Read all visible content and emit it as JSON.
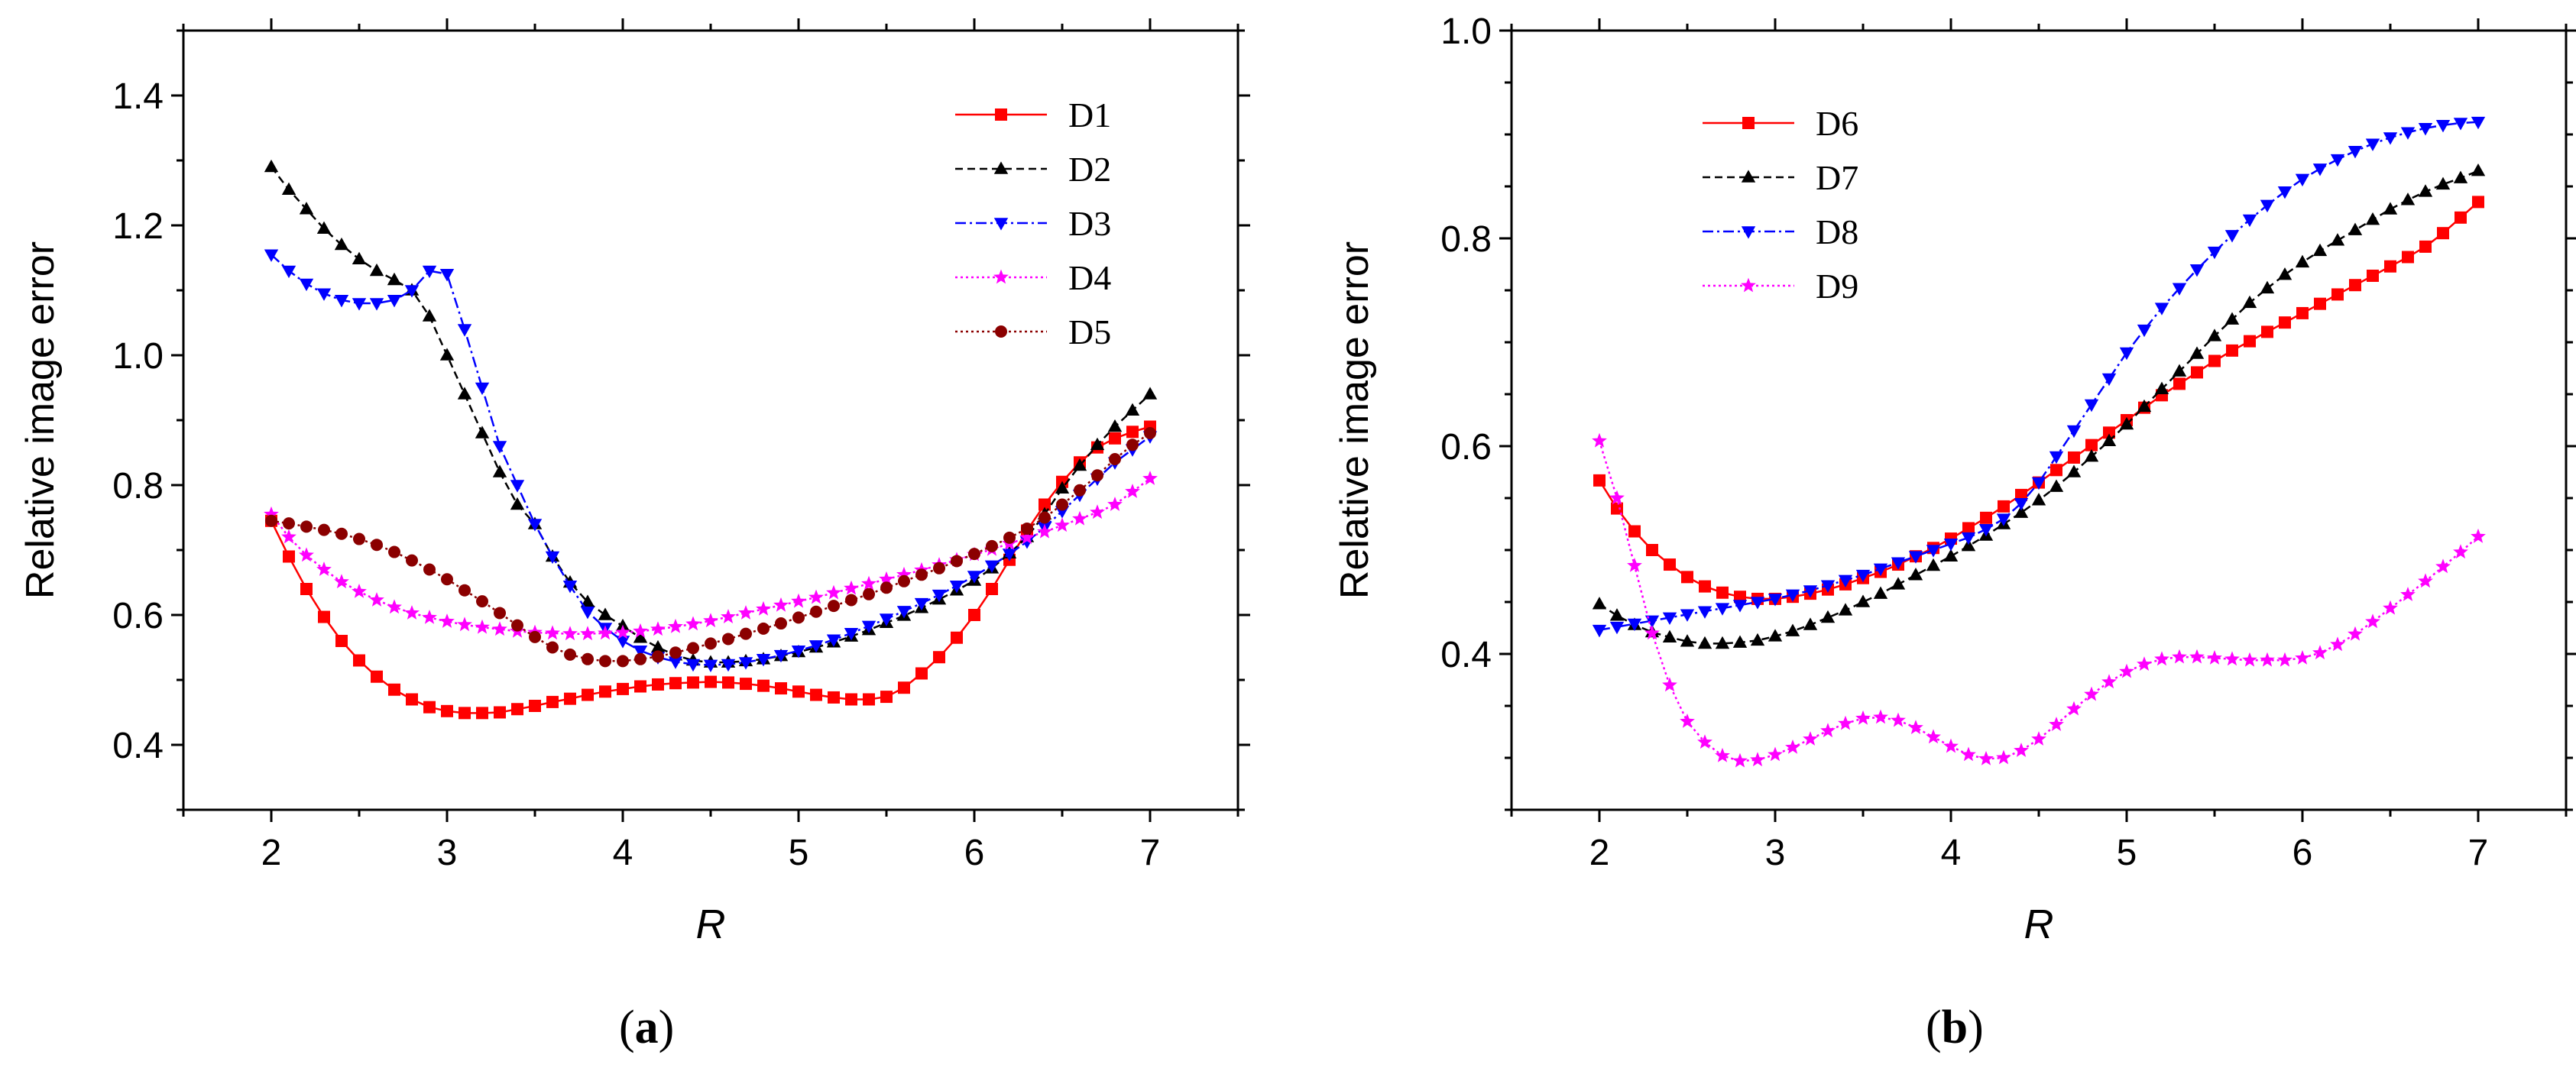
{
  "chart_data": [
    {
      "type": "line",
      "panel": "a",
      "panel_label": "a",
      "xlabel": "R",
      "ylabel": "Relative image error",
      "xlim": [
        1.5,
        7.5
      ],
      "ylim": [
        0.3,
        1.5
      ],
      "xticks": [
        2,
        3,
        4,
        5,
        6,
        7
      ],
      "yticks": [
        0.4,
        0.6,
        0.8,
        1.0,
        1.2,
        1.4
      ],
      "ytick_labels": [
        "0.4",
        "0.6",
        "0.8",
        "1.0",
        "1.2",
        "1.4"
      ],
      "legend_position": "top-right",
      "series": [
        {
          "name": "D1",
          "color": "#ff0000",
          "marker": "square",
          "dash": "solid",
          "x": [
            2.0,
            2.1,
            2.2,
            2.3,
            2.4,
            2.5,
            2.6,
            2.7,
            2.8,
            2.9,
            3.0,
            3.1,
            3.2,
            3.3,
            3.4,
            3.5,
            3.6,
            3.7,
            3.8,
            3.9,
            4.0,
            4.1,
            4.2,
            4.3,
            4.4,
            4.5,
            4.6,
            4.7,
            4.8,
            4.9,
            5.0,
            5.1,
            5.2,
            5.3,
            5.4,
            5.5,
            5.6,
            5.7,
            5.8,
            5.9,
            6.0,
            6.1,
            6.2,
            6.3,
            6.4,
            6.5,
            6.6,
            6.7,
            6.8,
            6.9,
            7.0
          ],
          "y": [
            0.745,
            0.69,
            0.64,
            0.597,
            0.56,
            0.53,
            0.505,
            0.485,
            0.47,
            0.458,
            0.452,
            0.449,
            0.449,
            0.45,
            0.455,
            0.46,
            0.466,
            0.471,
            0.477,
            0.482,
            0.486,
            0.49,
            0.493,
            0.495,
            0.496,
            0.497,
            0.496,
            0.494,
            0.491,
            0.487,
            0.482,
            0.477,
            0.473,
            0.47,
            0.47,
            0.474,
            0.488,
            0.51,
            0.535,
            0.565,
            0.6,
            0.64,
            0.685,
            0.73,
            0.77,
            0.805,
            0.835,
            0.858,
            0.872,
            0.882,
            0.89
          ]
        },
        {
          "name": "D2",
          "color": "#000000",
          "marker": "triangle-up",
          "dash": "dashed",
          "x": [
            2.0,
            2.1,
            2.2,
            2.3,
            2.4,
            2.5,
            2.6,
            2.7,
            2.8,
            2.9,
            3.0,
            3.1,
            3.2,
            3.3,
            3.4,
            3.5,
            3.6,
            3.7,
            3.8,
            3.9,
            4.0,
            4.1,
            4.2,
            4.3,
            4.4,
            4.5,
            4.6,
            4.7,
            4.8,
            4.9,
            5.0,
            5.1,
            5.2,
            5.3,
            5.4,
            5.5,
            5.6,
            5.7,
            5.8,
            5.9,
            6.0,
            6.1,
            6.2,
            6.3,
            6.4,
            6.5,
            6.6,
            6.7,
            6.8,
            6.9,
            7.0
          ],
          "y": [
            1.29,
            1.255,
            1.225,
            1.195,
            1.17,
            1.148,
            1.13,
            1.116,
            1.1,
            1.06,
            1.0,
            0.94,
            0.88,
            0.82,
            0.77,
            0.74,
            0.69,
            0.65,
            0.62,
            0.6,
            0.583,
            0.565,
            0.55,
            0.538,
            0.53,
            0.527,
            0.527,
            0.529,
            0.532,
            0.537,
            0.543,
            0.55,
            0.558,
            0.567,
            0.577,
            0.588,
            0.599,
            0.611,
            0.624,
            0.638,
            0.653,
            0.672,
            0.695,
            0.72,
            0.755,
            0.795,
            0.83,
            0.862,
            0.89,
            0.915,
            0.94
          ]
        },
        {
          "name": "D3",
          "color": "#0000ff",
          "marker": "triangle-down",
          "dash": "dashdot",
          "x": [
            2.0,
            2.1,
            2.2,
            2.3,
            2.4,
            2.5,
            2.6,
            2.7,
            2.8,
            2.9,
            3.0,
            3.1,
            3.2,
            3.3,
            3.4,
            3.5,
            3.6,
            3.7,
            3.8,
            3.9,
            4.0,
            4.1,
            4.2,
            4.3,
            4.4,
            4.5,
            4.6,
            4.7,
            4.8,
            4.9,
            5.0,
            5.1,
            5.2,
            5.3,
            5.4,
            5.5,
            5.6,
            5.7,
            5.8,
            5.9,
            6.0,
            6.1,
            6.2,
            6.3,
            6.4,
            6.5,
            6.6,
            6.7,
            6.8,
            6.9,
            7.0
          ],
          "y": [
            1.155,
            1.13,
            1.11,
            1.095,
            1.085,
            1.08,
            1.08,
            1.085,
            1.1,
            1.13,
            1.125,
            1.04,
            0.95,
            0.86,
            0.8,
            0.74,
            0.69,
            0.645,
            0.605,
            0.58,
            0.56,
            0.545,
            0.535,
            0.528,
            0.524,
            0.523,
            0.524,
            0.527,
            0.532,
            0.538,
            0.545,
            0.553,
            0.562,
            0.572,
            0.583,
            0.594,
            0.606,
            0.618,
            0.631,
            0.645,
            0.66,
            0.676,
            0.694,
            0.713,
            0.735,
            0.76,
            0.785,
            0.81,
            0.835,
            0.855,
            0.875
          ]
        },
        {
          "name": "D4",
          "color": "#ff00ff",
          "marker": "star",
          "dash": "dotted",
          "x": [
            2.0,
            2.1,
            2.2,
            2.3,
            2.4,
            2.5,
            2.6,
            2.7,
            2.8,
            2.9,
            3.0,
            3.1,
            3.2,
            3.3,
            3.4,
            3.5,
            3.6,
            3.7,
            3.8,
            3.9,
            4.0,
            4.1,
            4.2,
            4.3,
            4.4,
            4.5,
            4.6,
            4.7,
            4.8,
            4.9,
            5.0,
            5.1,
            5.2,
            5.3,
            5.4,
            5.5,
            5.6,
            5.7,
            5.8,
            5.9,
            6.0,
            6.1,
            6.2,
            6.3,
            6.4,
            6.5,
            6.6,
            6.7,
            6.8,
            6.9,
            7.0
          ],
          "y": [
            0.755,
            0.72,
            0.692,
            0.67,
            0.651,
            0.636,
            0.623,
            0.612,
            0.603,
            0.596,
            0.59,
            0.585,
            0.581,
            0.578,
            0.575,
            0.573,
            0.572,
            0.571,
            0.571,
            0.572,
            0.573,
            0.575,
            0.578,
            0.582,
            0.586,
            0.591,
            0.597,
            0.603,
            0.609,
            0.615,
            0.621,
            0.627,
            0.634,
            0.641,
            0.648,
            0.655,
            0.662,
            0.669,
            0.677,
            0.685,
            0.693,
            0.701,
            0.71,
            0.719,
            0.728,
            0.738,
            0.748,
            0.758,
            0.77,
            0.79,
            0.81
          ]
        },
        {
          "name": "D5",
          "color": "#8b0000",
          "marker": "circle",
          "dash": "dotted",
          "x": [
            2.0,
            2.1,
            2.2,
            2.3,
            2.4,
            2.5,
            2.6,
            2.7,
            2.8,
            2.9,
            3.0,
            3.1,
            3.2,
            3.3,
            3.4,
            3.5,
            3.6,
            3.7,
            3.8,
            3.9,
            4.0,
            4.1,
            4.2,
            4.3,
            4.4,
            4.5,
            4.6,
            4.7,
            4.8,
            4.9,
            5.0,
            5.1,
            5.2,
            5.3,
            5.4,
            5.5,
            5.6,
            5.7,
            5.8,
            5.9,
            6.0,
            6.1,
            6.2,
            6.3,
            6.4,
            6.5,
            6.6,
            6.7,
            6.8,
            6.9,
            7.0
          ],
          "y": [
            0.745,
            0.741,
            0.736,
            0.731,
            0.725,
            0.717,
            0.708,
            0.697,
            0.684,
            0.67,
            0.655,
            0.638,
            0.621,
            0.603,
            0.584,
            0.566,
            0.55,
            0.539,
            0.532,
            0.529,
            0.529,
            0.532,
            0.536,
            0.542,
            0.549,
            0.556,
            0.563,
            0.571,
            0.579,
            0.587,
            0.596,
            0.605,
            0.614,
            0.623,
            0.632,
            0.642,
            0.652,
            0.662,
            0.672,
            0.683,
            0.694,
            0.706,
            0.719,
            0.733,
            0.75,
            0.77,
            0.792,
            0.815,
            0.84,
            0.862,
            0.88
          ]
        }
      ]
    },
    {
      "type": "line",
      "panel": "b",
      "panel_label": "b",
      "xlabel": "R",
      "ylabel": "Relative image error",
      "xlim": [
        1.5,
        7.5
      ],
      "ylim": [
        0.25,
        1.0
      ],
      "xticks": [
        2,
        3,
        4,
        5,
        6,
        7
      ],
      "yticks": [
        0.4,
        0.6,
        0.8,
        1.0
      ],
      "ytick_labels": [
        "0.4",
        "0.6",
        "0.8",
        "1.0"
      ],
      "legend_position": "top-left",
      "series": [
        {
          "name": "D6",
          "color": "#ff0000",
          "marker": "square",
          "dash": "solid",
          "x": [
            2.0,
            2.1,
            2.2,
            2.3,
            2.4,
            2.5,
            2.6,
            2.7,
            2.8,
            2.9,
            3.0,
            3.1,
            3.2,
            3.3,
            3.4,
            3.5,
            3.6,
            3.7,
            3.8,
            3.9,
            4.0,
            4.1,
            4.2,
            4.3,
            4.4,
            4.5,
            4.6,
            4.7,
            4.8,
            4.9,
            5.0,
            5.1,
            5.2,
            5.3,
            5.4,
            5.5,
            5.6,
            5.7,
            5.8,
            5.9,
            6.0,
            6.1,
            6.2,
            6.3,
            6.4,
            6.5,
            6.6,
            6.7,
            6.8,
            6.9,
            7.0
          ],
          "y": [
            0.567,
            0.54,
            0.518,
            0.5,
            0.486,
            0.474,
            0.465,
            0.459,
            0.455,
            0.453,
            0.453,
            0.455,
            0.458,
            0.462,
            0.467,
            0.473,
            0.479,
            0.486,
            0.494,
            0.502,
            0.511,
            0.521,
            0.531,
            0.542,
            0.553,
            0.565,
            0.577,
            0.589,
            0.601,
            0.613,
            0.625,
            0.637,
            0.649,
            0.66,
            0.671,
            0.682,
            0.692,
            0.701,
            0.71,
            0.719,
            0.728,
            0.737,
            0.746,
            0.755,
            0.764,
            0.773,
            0.782,
            0.792,
            0.805,
            0.82,
            0.835
          ]
        },
        {
          "name": "D7",
          "color": "#000000",
          "marker": "triangle-up",
          "dash": "dashed",
          "x": [
            2.0,
            2.1,
            2.2,
            2.3,
            2.4,
            2.5,
            2.6,
            2.7,
            2.8,
            2.9,
            3.0,
            3.1,
            3.2,
            3.3,
            3.4,
            3.5,
            3.6,
            3.7,
            3.8,
            3.9,
            4.0,
            4.1,
            4.2,
            4.3,
            4.4,
            4.5,
            4.6,
            4.7,
            4.8,
            4.9,
            5.0,
            5.1,
            5.2,
            5.3,
            5.4,
            5.5,
            5.6,
            5.7,
            5.8,
            5.9,
            6.0,
            6.1,
            6.2,
            6.3,
            6.4,
            6.5,
            6.6,
            6.7,
            6.8,
            6.9,
            7.0
          ],
          "y": [
            0.448,
            0.437,
            0.428,
            0.421,
            0.416,
            0.412,
            0.41,
            0.41,
            0.411,
            0.413,
            0.417,
            0.422,
            0.428,
            0.435,
            0.442,
            0.45,
            0.458,
            0.467,
            0.476,
            0.485,
            0.494,
            0.504,
            0.514,
            0.525,
            0.536,
            0.548,
            0.561,
            0.575,
            0.59,
            0.605,
            0.621,
            0.638,
            0.655,
            0.672,
            0.689,
            0.706,
            0.722,
            0.738,
            0.752,
            0.765,
            0.777,
            0.788,
            0.798,
            0.808,
            0.818,
            0.828,
            0.837,
            0.845,
            0.852,
            0.858,
            0.865
          ]
        },
        {
          "name": "D8",
          "color": "#0000ff",
          "marker": "triangle-down",
          "dash": "dashdot",
          "x": [
            2.0,
            2.1,
            2.2,
            2.3,
            2.4,
            2.5,
            2.6,
            2.7,
            2.8,
            2.9,
            3.0,
            3.1,
            3.2,
            3.3,
            3.4,
            3.5,
            3.6,
            3.7,
            3.8,
            3.9,
            4.0,
            4.1,
            4.2,
            4.3,
            4.4,
            4.5,
            4.6,
            4.7,
            4.8,
            4.9,
            5.0,
            5.1,
            5.2,
            5.3,
            5.4,
            5.5,
            5.6,
            5.7,
            5.8,
            5.9,
            6.0,
            6.1,
            6.2,
            6.3,
            6.4,
            6.5,
            6.6,
            6.7,
            6.8,
            6.9,
            7.0
          ],
          "y": [
            0.423,
            0.426,
            0.429,
            0.432,
            0.435,
            0.438,
            0.441,
            0.444,
            0.447,
            0.45,
            0.453,
            0.457,
            0.461,
            0.466,
            0.471,
            0.476,
            0.482,
            0.488,
            0.494,
            0.5,
            0.506,
            0.512,
            0.52,
            0.53,
            0.545,
            0.565,
            0.59,
            0.615,
            0.64,
            0.665,
            0.69,
            0.712,
            0.733,
            0.752,
            0.77,
            0.787,
            0.803,
            0.818,
            0.832,
            0.845,
            0.857,
            0.867,
            0.876,
            0.884,
            0.891,
            0.897,
            0.902,
            0.906,
            0.909,
            0.911,
            0.912
          ]
        },
        {
          "name": "D9",
          "color": "#ff00ff",
          "marker": "star",
          "dash": "dotted",
          "x": [
            2.0,
            2.1,
            2.2,
            2.3,
            2.4,
            2.5,
            2.6,
            2.7,
            2.8,
            2.9,
            3.0,
            3.1,
            3.2,
            3.3,
            3.4,
            3.5,
            3.6,
            3.7,
            3.8,
            3.9,
            4.0,
            4.1,
            4.2,
            4.3,
            4.4,
            4.5,
            4.6,
            4.7,
            4.8,
            4.9,
            5.0,
            5.1,
            5.2,
            5.3,
            5.4,
            5.5,
            5.6,
            5.7,
            5.8,
            5.9,
            6.0,
            6.1,
            6.2,
            6.3,
            6.4,
            6.5,
            6.6,
            6.7,
            6.8,
            6.9,
            7.0
          ],
          "y": [
            0.605,
            0.55,
            0.485,
            0.42,
            0.37,
            0.335,
            0.315,
            0.302,
            0.297,
            0.298,
            0.303,
            0.31,
            0.318,
            0.326,
            0.333,
            0.338,
            0.339,
            0.336,
            0.329,
            0.32,
            0.311,
            0.303,
            0.299,
            0.3,
            0.307,
            0.318,
            0.332,
            0.347,
            0.361,
            0.373,
            0.383,
            0.39,
            0.395,
            0.397,
            0.397,
            0.396,
            0.395,
            0.394,
            0.394,
            0.394,
            0.396,
            0.401,
            0.409,
            0.419,
            0.431,
            0.444,
            0.457,
            0.47,
            0.484,
            0.498,
            0.513
          ]
        }
      ]
    }
  ]
}
